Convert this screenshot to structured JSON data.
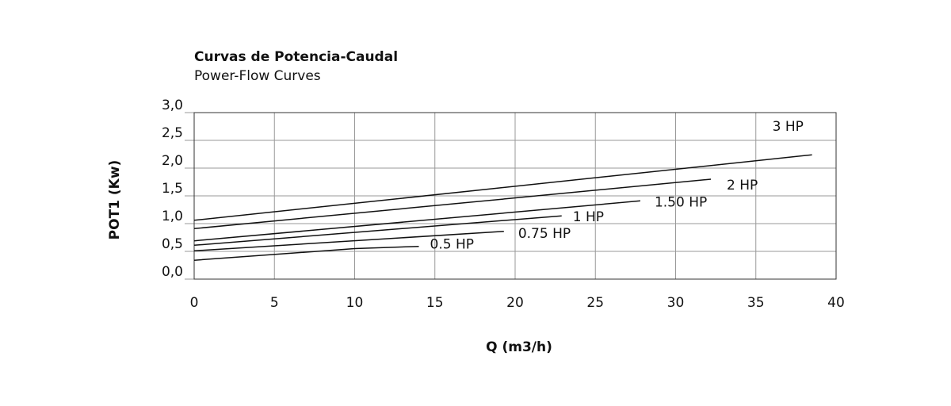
{
  "chart_data": {
    "type": "line",
    "title": "Curvas de Potencia-Caudal",
    "subtitle": "Power-Flow Curves",
    "x_label": "Q (m3/h)",
    "y_label": "POT1 (Kw)",
    "xlim": [
      0,
      40
    ],
    "xticks": [
      0,
      5,
      10,
      15,
      20,
      25,
      30,
      35,
      40
    ],
    "ylim": [
      0,
      3
    ],
    "yticks": [
      {
        "value": 0,
        "label": "0,0"
      },
      {
        "value": 0.5,
        "label": "0,5"
      },
      {
        "value": 1,
        "label": "1,0"
      },
      {
        "value": 1.5,
        "label": "1,5"
      },
      {
        "value": 2,
        "label": "2,0"
      },
      {
        "value": 2.5,
        "label": "2,5"
      },
      {
        "value": 3,
        "label": "3,0"
      }
    ],
    "grid": true,
    "series": [
      {
        "name": "3 HP",
        "color": "#111111",
        "x": [
          0,
          38.5
        ],
        "values": [
          1.06,
          2.24
        ]
      },
      {
        "name": "2 HP",
        "color": "#111111",
        "x": [
          0,
          32.2
        ],
        "values": [
          0.91,
          1.8
        ]
      },
      {
        "name": "1.50 HP",
        "color": "#111111",
        "x": [
          0,
          27.8
        ],
        "values": [
          0.69,
          1.41
        ]
      },
      {
        "name": "1 HP",
        "color": "#111111",
        "x": [
          0,
          22.9
        ],
        "values": [
          0.61,
          1.14
        ]
      },
      {
        "name": "0.75 HP",
        "color": "#111111",
        "x": [
          0,
          19.3
        ],
        "values": [
          0.51,
          0.86
        ]
      },
      {
        "name": "0.5 HP",
        "color": "#111111",
        "x": [
          0,
          10,
          14
        ],
        "values": [
          0.34,
          0.55,
          0.59
        ]
      }
    ]
  }
}
